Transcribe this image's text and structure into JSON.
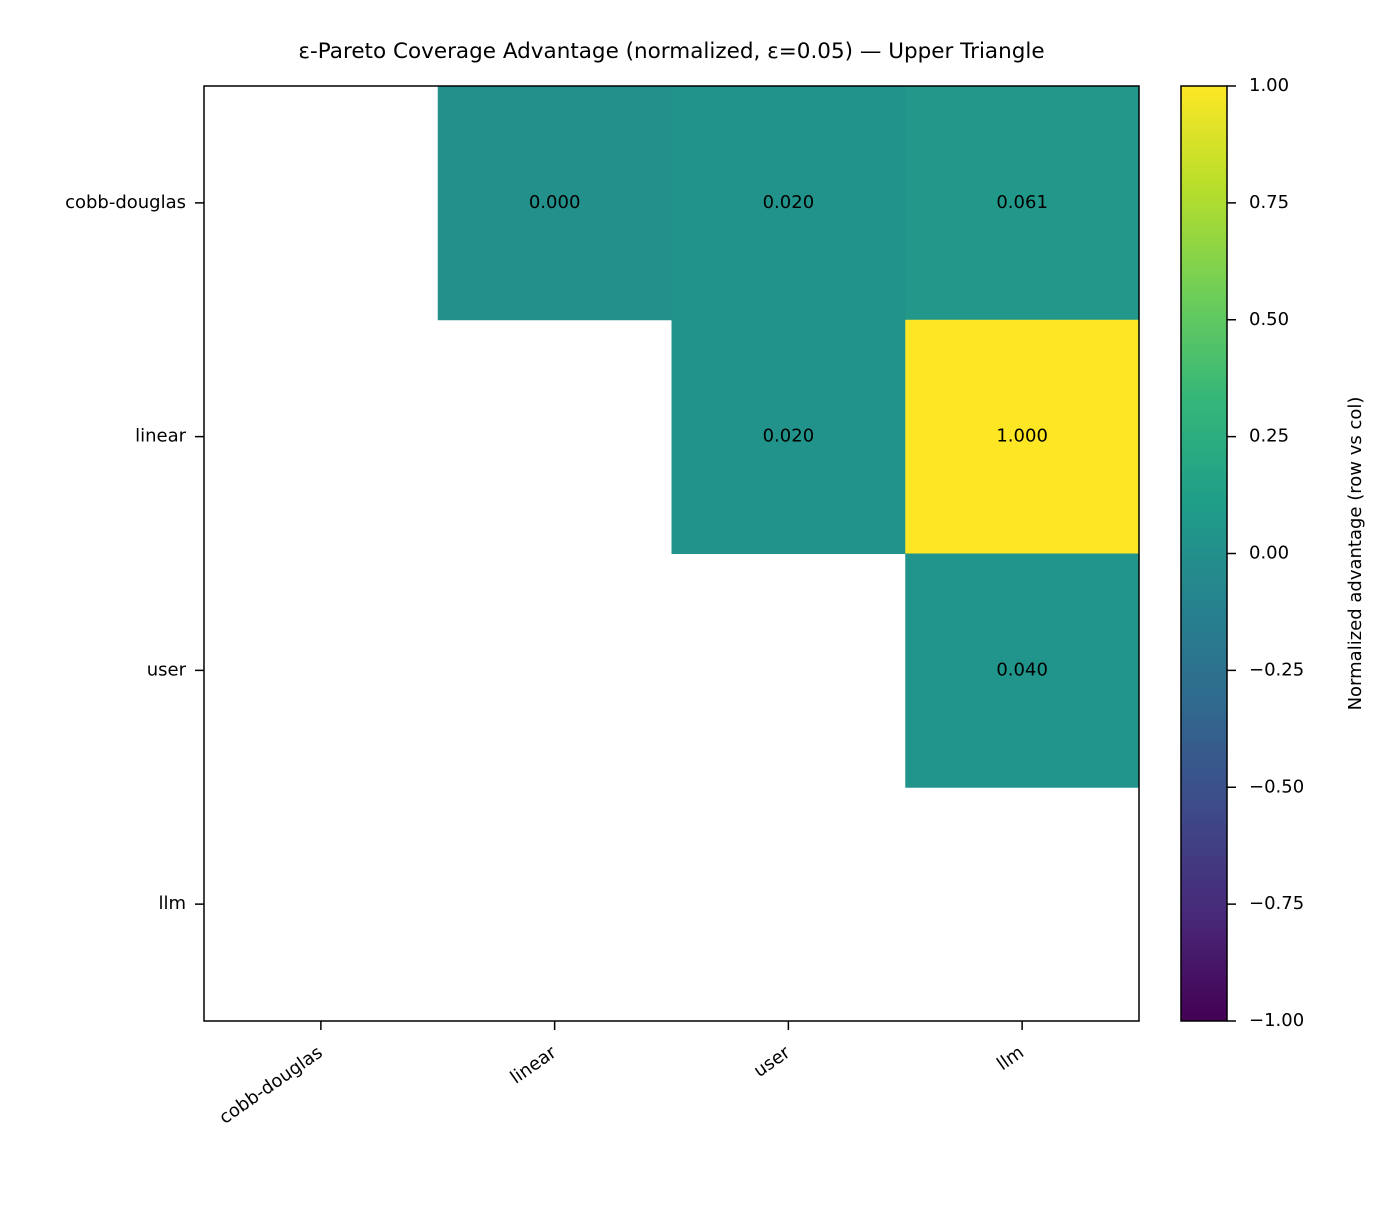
{
  "chart_data": {
    "type": "heatmap",
    "title": "ε-Pareto Coverage Advantage (normalized, ε=0.05) — Upper Triangle",
    "row_labels": [
      "cobb-douglas",
      "linear",
      "user",
      "llm"
    ],
    "col_labels": [
      "cobb-douglas",
      "linear",
      "user",
      "llm"
    ],
    "values": [
      [
        null,
        0.0,
        0.02,
        0.061
      ],
      [
        null,
        null,
        0.02,
        1.0
      ],
      [
        null,
        null,
        null,
        0.04
      ],
      [
        null,
        null,
        null,
        null
      ]
    ],
    "value_labels": [
      [
        null,
        "0.000",
        "0.020",
        "0.061"
      ],
      [
        null,
        null,
        "0.020",
        "1.000"
      ],
      [
        null,
        null,
        null,
        "0.040"
      ],
      [
        null,
        null,
        null,
        null
      ]
    ],
    "colormap": "viridis",
    "colorbar": {
      "label": "Normalized advantage (row vs col)",
      "range": [
        -1.0,
        1.0
      ],
      "ticks": [
        1.0,
        0.75,
        0.5,
        0.25,
        0.0,
        -0.25,
        -0.5,
        -0.75,
        -1.0
      ],
      "tick_labels": [
        "1.00",
        "0.75",
        "0.50",
        "0.25",
        "0.00",
        "−0.25",
        "−0.50",
        "−0.75",
        "−1.00"
      ]
    },
    "masked": "lower triangle and diagonal"
  }
}
